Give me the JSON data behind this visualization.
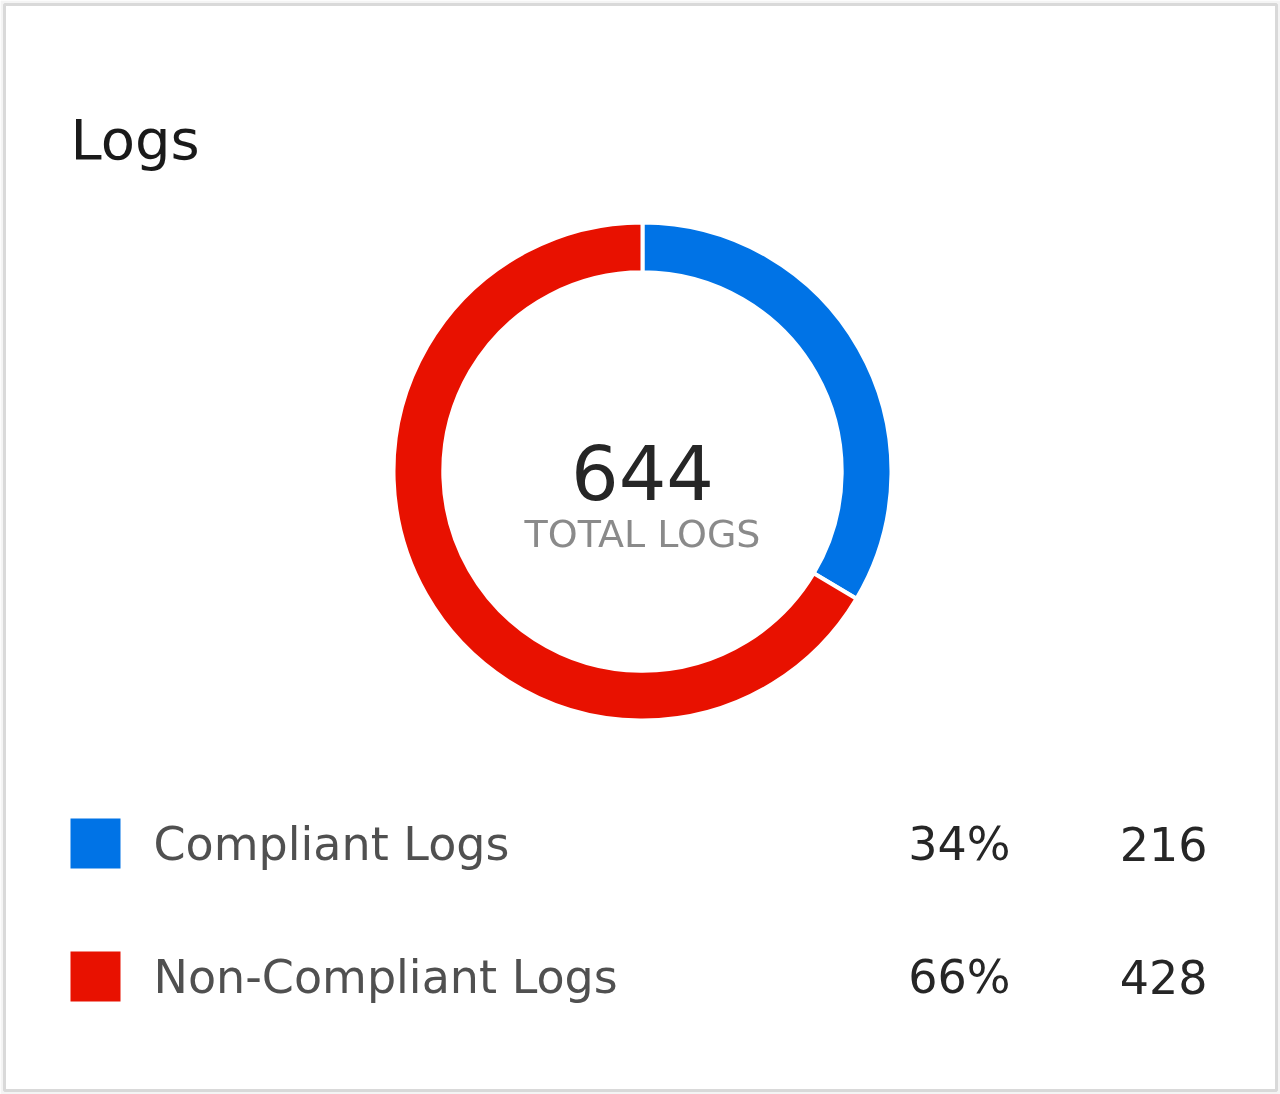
{
  "chart_data": {
    "type": "donut",
    "title": "Logs",
    "categories": [
      "Compliant Logs",
      "Non-Compliant Logs"
    ],
    "values": [
      216,
      428
    ],
    "colors": [
      "#0073e6",
      "#e81100"
    ],
    "data_labels": true,
    "annotations": [
      "644",
      "TOTAL LOGS",
      "34%",
      "66%"
    ],
    "legend": "bottom"
  }
}
